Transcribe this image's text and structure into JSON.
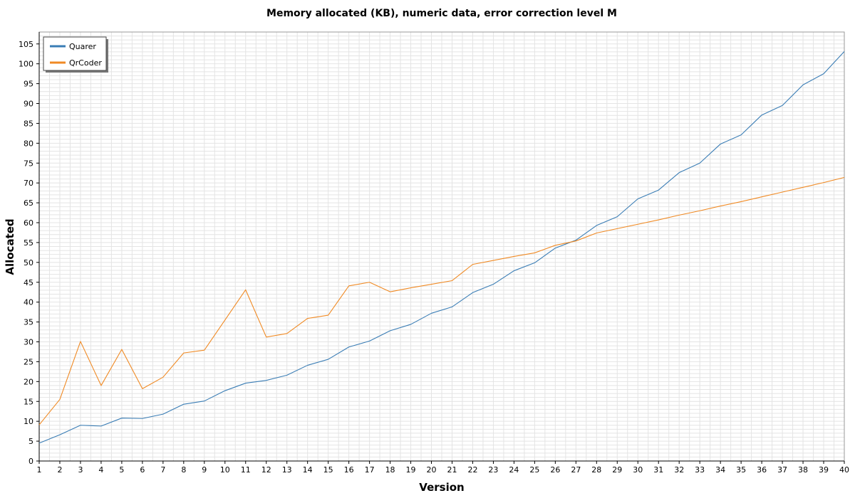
{
  "chart_data": {
    "type": "line",
    "title": "Memory allocated (KB), numeric data, error correction level M",
    "xlabel": "Version",
    "ylabel": "Allocated",
    "xlim": [
      1,
      40
    ],
    "ylim": [
      0,
      108
    ],
    "y_ticks": [
      0,
      5,
      10,
      15,
      20,
      25,
      30,
      35,
      40,
      45,
      50,
      55,
      60,
      65,
      70,
      75,
      80,
      85,
      90,
      95,
      100,
      105
    ],
    "grid": true,
    "legend_position": "top-left",
    "x": [
      1,
      2,
      3,
      4,
      5,
      6,
      7,
      8,
      9,
      10,
      11,
      12,
      13,
      14,
      15,
      16,
      17,
      18,
      19,
      20,
      21,
      22,
      23,
      24,
      25,
      26,
      27,
      28,
      29,
      30,
      31,
      32,
      33,
      34,
      35,
      36,
      37,
      38,
      39,
      40
    ],
    "series": [
      {
        "name": "Quarer",
        "color": "#3a7db5",
        "values": [
          4.5,
          6.6,
          9.0,
          8.8,
          10.8,
          10.7,
          11.8,
          14.3,
          15.1,
          17.7,
          19.6,
          20.3,
          21.6,
          24.1,
          25.6,
          28.7,
          30.2,
          32.8,
          34.4,
          37.2,
          38.8,
          42.4,
          44.5,
          47.9,
          49.9,
          53.6,
          55.6,
          59.3,
          61.5,
          66.0,
          68.2,
          72.6,
          75.0,
          79.8,
          82.1,
          87.1,
          89.5,
          94.7,
          97.5,
          103.1
        ]
      },
      {
        "name": "QrCoder",
        "color": "#f08a24",
        "values": [
          9.1,
          15.5,
          30.1,
          19.0,
          28.1,
          18.2,
          21.1,
          27.2,
          27.9,
          35.5,
          43.1,
          31.2,
          32.1,
          35.9,
          36.7,
          44.1,
          45.0,
          42.6,
          43.6,
          44.5,
          45.4,
          49.5,
          50.5,
          51.5,
          52.4,
          54.3,
          55.4,
          57.4,
          58.5,
          59.6,
          60.7,
          61.9,
          63.0,
          64.2,
          65.3,
          66.5,
          67.7,
          68.9,
          70.1,
          71.4
        ]
      }
    ]
  }
}
